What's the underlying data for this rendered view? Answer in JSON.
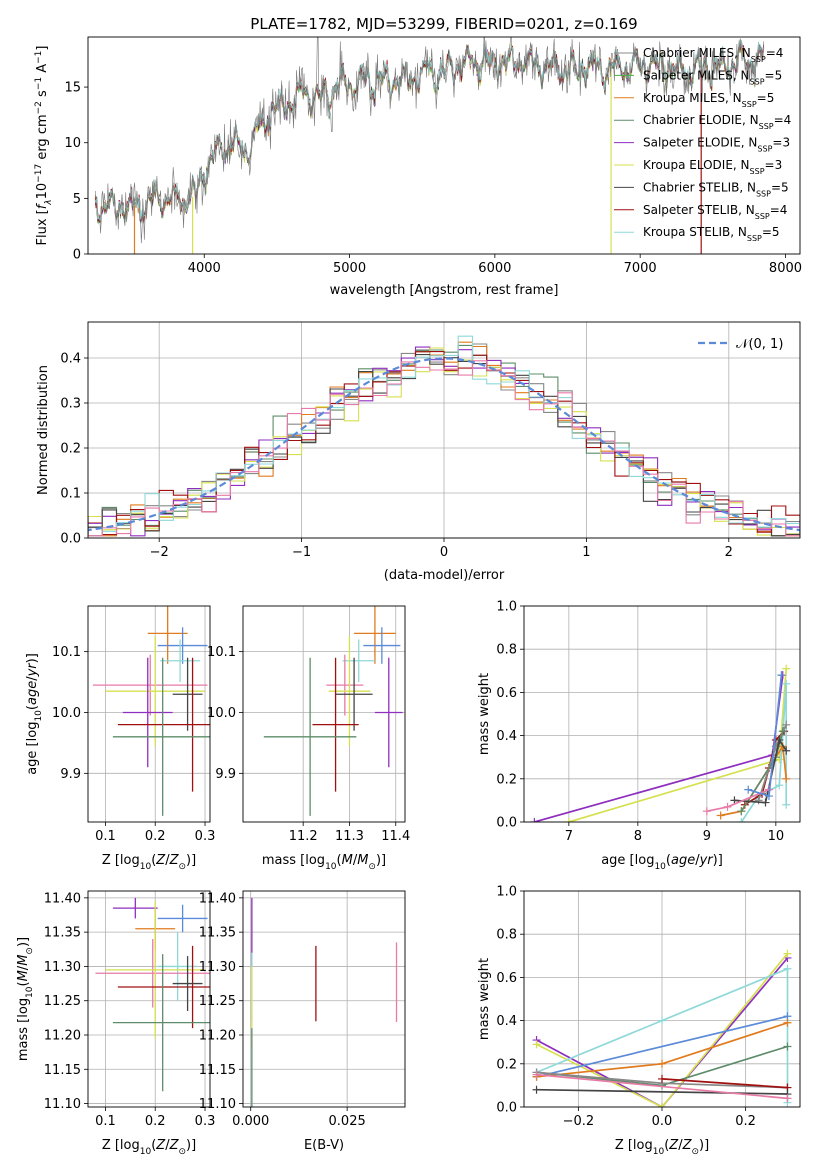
{
  "figure_title": "PLATE=1782, MJD=53299, FIBERID=0201, z=0.169",
  "colors": {
    "Chabrier MILES": "#888888",
    "Salpeter MILES": "#4daf4a",
    "Kroupa MILES": "#e07b1f",
    "Chabrier ELODIE": "#5e8c6a",
    "Salpeter ELODIE": "#8e2fbf",
    "Kroupa ELODIE": "#d6e04f",
    "Chabrier STELIB": "#444444",
    "Salpeter STELIB": "#a01010",
    "Kroupa STELIB": "#8fd8d8",
    "pink": "#e87aa7",
    "blue": "#5b8ad8"
  },
  "chart_data": [
    {
      "id": "spectrum",
      "type": "line",
      "xlabel": "wavelength [Angstrom, rest frame]",
      "ylabel": "Flux [f_λ 10^-17 erg cm^-2 s^-1 A^-1]",
      "xlim": [
        3200,
        8100
      ],
      "ylim": [
        0,
        19.5
      ],
      "xticks": [
        4000,
        5000,
        6000,
        7000,
        8000
      ],
      "yticks": [
        0,
        5,
        10,
        15
      ],
      "legend_position": "right",
      "legend": [
        {
          "name": "Chabrier MILES",
          "label": "Chabrier MILES, N",
          "sub": "SSP",
          "suffix": "=4"
        },
        {
          "name": "Salpeter MILES",
          "label": "Salpeter MILES, N",
          "sub": "SSP",
          "suffix": "=5"
        },
        {
          "name": "Kroupa MILES",
          "label": "Kroupa MILES, N",
          "sub": "SSP",
          "suffix": "=5"
        },
        {
          "name": "Chabrier ELODIE",
          "label": "Chabrier ELODIE, N",
          "sub": "SSP",
          "suffix": "=4"
        },
        {
          "name": "Salpeter ELODIE",
          "label": "Salpeter ELODIE, N",
          "sub": "SSP",
          "suffix": "=3"
        },
        {
          "name": "Kroupa ELODIE",
          "label": "Kroupa ELODIE, N",
          "sub": "SSP",
          "suffix": "=3"
        },
        {
          "name": "Chabrier STELIB",
          "label": "Chabrier STELIB, N",
          "sub": "SSP",
          "suffix": "=5"
        },
        {
          "name": "Salpeter STELIB",
          "label": "Salpeter STELIB, N",
          "sub": "SSP",
          "suffix": "=4"
        },
        {
          "name": "Kroupa STELIB",
          "label": "Kroupa STELIB, N",
          "sub": "SSP",
          "suffix": "=5"
        }
      ],
      "continuum": {
        "x": [
          3250,
          3400,
          3550,
          3700,
          3850,
          3950,
          4000,
          4100,
          4200,
          4300,
          4400,
          4500,
          4600,
          4700,
          4800,
          4900,
          5000,
          5200,
          5400,
          5600,
          5800,
          6000,
          6200,
          6400,
          6600,
          6800,
          7000,
          7200,
          7400,
          7600,
          7800
        ],
        "y": [
          4.0,
          4.5,
          4.3,
          5.0,
          4.8,
          5.3,
          7.5,
          9.5,
          10.0,
          9.5,
          12.0,
          13.0,
          13.8,
          14.5,
          14.0,
          15.0,
          15.3,
          15.5,
          15.8,
          16.3,
          17.2,
          17.0,
          17.3,
          16.5,
          16.8,
          16.6,
          16.9,
          16.7,
          16.5,
          17.0,
          17.6
        ]
      },
      "data_trace": {
        "xmin": 3250,
        "xmax": 7850,
        "noise": 0.9
      },
      "model_dropouts": [
        {
          "series": "Kroupa MILES",
          "x": 3520
        },
        {
          "series": "Kroupa ELODIE",
          "x": 3920
        },
        {
          "series": "Kroupa ELODIE",
          "x": 6800
        },
        {
          "series": "Salpeter STELIB",
          "x": 7420
        }
      ]
    },
    {
      "id": "residuals",
      "type": "step",
      "xlabel": "(data-model)/error",
      "ylabel": "Normed distribution",
      "xlim": [
        -2.5,
        2.5
      ],
      "ylim": [
        0,
        0.48
      ],
      "xticks": [
        -2,
        -1,
        0,
        1,
        2
      ],
      "yticks": [
        0.0,
        0.1,
        0.2,
        0.3,
        0.4
      ],
      "legend": "𝒩(0, 1)",
      "reference_curve": "N(0,1)",
      "bin_width": 0.1,
      "series_colors": [
        "Chabrier MILES",
        "Kroupa MILES",
        "Chabrier ELODIE",
        "Salpeter ELODIE",
        "Kroupa ELODIE",
        "Chabrier STELIB",
        "Salpeter STELIB",
        "Kroupa STELIB",
        "pink"
      ]
    },
    {
      "id": "age_vs_Z",
      "type": "errorbar",
      "xlabel": "Z [log10(Z/Z⊙)]",
      "ylabel": "age [log10(age/yr)]",
      "xlim": [
        0.065,
        0.31
      ],
      "ylim": [
        9.82,
        10.175
      ],
      "xticks": [
        0.1,
        0.2,
        0.3
      ],
      "yticks": [
        9.9,
        10.0,
        10.1
      ],
      "points": [
        {
          "color": "Kroupa MILES",
          "x": 0.225,
          "xerr": 0.04,
          "y": 10.13,
          "yerr": 0.05
        },
        {
          "color": "blue",
          "x": 0.255,
          "xerr": 0.05,
          "y": 10.11,
          "yerr": 0.03
        },
        {
          "color": "Kroupa STELIB",
          "x": 0.25,
          "xerr": 0.04,
          "y": 10.085,
          "yerr": 0.035
        },
        {
          "color": "pink",
          "x": 0.19,
          "xerr": 0.115,
          "y": 10.045,
          "yerr": 0.05
        },
        {
          "color": "Kroupa ELODIE",
          "x": 0.2,
          "xerr": 0.1,
          "y": 10.035,
          "yerr": 0.09
        },
        {
          "color": "Chabrier STELIB",
          "x": 0.265,
          "xerr": 0.03,
          "y": 10.03,
          "yerr": 0.06
        },
        {
          "color": "Salpeter ELODIE",
          "x": 0.185,
          "xerr": 0.05,
          "y": 10.0,
          "yerr": 0.09
        },
        {
          "color": "Salpeter STELIB",
          "x": 0.275,
          "xerr": 0.15,
          "y": 9.98,
          "yerr": 0.11
        },
        {
          "color": "Chabrier ELODIE",
          "x": 0.215,
          "xerr": 0.1,
          "y": 9.96,
          "yerr": 0.13
        }
      ]
    },
    {
      "id": "age_vs_mass",
      "type": "errorbar",
      "xlabel": "mass [log10(M/M⊙)]",
      "ylabel": "",
      "xlim": [
        11.07,
        11.42
      ],
      "ylim": [
        9.82,
        10.175
      ],
      "xticks": [
        11.2,
        11.3,
        11.4
      ],
      "yticks": [
        9.9,
        10.0,
        10.1
      ],
      "points": [
        {
          "color": "Kroupa MILES",
          "x": 11.355,
          "xerr": 0.045,
          "y": 10.13,
          "yerr": 0.05
        },
        {
          "color": "blue",
          "x": 11.37,
          "xerr": 0.04,
          "y": 10.11,
          "yerr": 0.03
        },
        {
          "color": "Kroupa STELIB",
          "x": 11.32,
          "xerr": 0.035,
          "y": 10.085,
          "yerr": 0.035
        },
        {
          "color": "pink",
          "x": 11.29,
          "xerr": 0.04,
          "y": 10.045,
          "yerr": 0.05
        },
        {
          "color": "Kroupa ELODIE",
          "x": 11.3,
          "xerr": 0.045,
          "y": 10.035,
          "yerr": 0.09
        },
        {
          "color": "Chabrier STELIB",
          "x": 11.31,
          "xerr": 0.04,
          "y": 10.03,
          "yerr": 0.06
        },
        {
          "color": "Salpeter ELODIE",
          "x": 11.385,
          "xerr": 0.03,
          "y": 10.0,
          "yerr": 0.09
        },
        {
          "color": "Salpeter STELIB",
          "x": 11.27,
          "xerr": 0.05,
          "y": 9.98,
          "yerr": 0.11
        },
        {
          "color": "Chabrier ELODIE",
          "x": 11.215,
          "xerr": 0.1,
          "y": 9.96,
          "yerr": 0.13
        }
      ]
    },
    {
      "id": "weight_vs_age",
      "type": "line",
      "xlabel": "age [log10(age/yr)]",
      "ylabel": "mass weight",
      "xlim": [
        6.35,
        10.35
      ],
      "ylim": [
        0,
        1.0
      ],
      "xticks": [
        7,
        8,
        9,
        10
      ],
      "yticks": [
        0.0,
        0.2,
        0.4,
        0.6,
        0.8,
        1.0
      ],
      "series": [
        {
          "color": "Salpeter ELODIE",
          "x": [
            6.5,
            9.95,
            10.1
          ],
          "y": [
            0.0,
            0.31,
            0.68
          ]
        },
        {
          "color": "Kroupa ELODIE",
          "x": [
            7.0,
            10.05,
            10.15
          ],
          "y": [
            0.0,
            0.29,
            0.71
          ]
        },
        {
          "color": "Kroupa STELIB",
          "x": [
            9.5,
            9.75,
            10.05,
            10.15,
            10.15
          ],
          "y": [
            0.0,
            0.12,
            0.17,
            0.64,
            0.08
          ]
        },
        {
          "color": "Salpeter STELIB",
          "x": [
            9.55,
            9.8,
            9.9,
            10.0,
            10.12
          ],
          "y": [
            0.08,
            0.13,
            0.25,
            0.38,
            0.42
          ]
        },
        {
          "color": "Chabrier MILES",
          "x": [
            9.75,
            10.0,
            10.15
          ],
          "y": [
            0.1,
            0.35,
            0.45
          ]
        },
        {
          "color": "Kroupa MILES",
          "x": [
            9.2,
            9.5,
            10.1,
            10.15
          ],
          "y": [
            0.03,
            0.05,
            0.35,
            0.2
          ]
        },
        {
          "color": "Chabrier ELODIE",
          "x": [
            9.5,
            10.0,
            10.1
          ],
          "y": [
            0.05,
            0.3,
            0.42
          ]
        },
        {
          "color": "Chabrier STELIB",
          "x": [
            9.4,
            9.85,
            10.05,
            10.15
          ],
          "y": [
            0.1,
            0.09,
            0.38,
            0.33
          ]
        },
        {
          "color": "pink",
          "x": [
            9.0,
            9.3,
            9.9
          ],
          "y": [
            0.05,
            0.07,
            0.15
          ]
        },
        {
          "color": "blue",
          "x": [
            9.6,
            9.9,
            10.08
          ],
          "y": [
            0.15,
            0.12,
            0.68
          ]
        }
      ]
    },
    {
      "id": "mass_vs_Z",
      "type": "errorbar",
      "xlabel": "Z [log10(Z/Z⊙)]",
      "ylabel": "mass [log10(M/M⊙)]",
      "xlim": [
        0.065,
        0.31
      ],
      "ylim": [
        11.095,
        11.41
      ],
      "xticks": [
        0.1,
        0.2,
        0.3
      ],
      "yticks": [
        11.1,
        11.15,
        11.2,
        11.25,
        11.3,
        11.35,
        11.4
      ],
      "points": [
        {
          "color": "Salpeter ELODIE",
          "x": 0.16,
          "xerr": 0.045,
          "y": 11.385,
          "yerr": 0.015
        },
        {
          "color": "blue",
          "x": 0.255,
          "xerr": 0.05,
          "y": 11.37,
          "yerr": 0.02
        },
        {
          "color": "Kroupa MILES",
          "x": 0.2,
          "xerr": 0.04,
          "y": 11.355,
          "yerr": 0.03
        },
        {
          "color": "Kroupa STELIB",
          "x": 0.245,
          "xerr": 0.04,
          "y": 11.3,
          "yerr": 0.05
        },
        {
          "color": "pink",
          "x": 0.195,
          "xerr": 0.115,
          "y": 11.29,
          "yerr": 0.05
        },
        {
          "color": "Kroupa ELODIE",
          "x": 0.2,
          "xerr": 0.1,
          "y": 11.295,
          "yerr": 0.1
        },
        {
          "color": "Salpeter STELIB",
          "x": 0.275,
          "xerr": 0.15,
          "y": 11.27,
          "yerr": 0.06
        },
        {
          "color": "Chabrier STELIB",
          "x": 0.265,
          "xerr": 0.03,
          "y": 11.275,
          "yerr": 0.04
        },
        {
          "color": "Chabrier ELODIE",
          "x": 0.215,
          "xerr": 0.1,
          "y": 11.218,
          "yerr": 0.1
        }
      ]
    },
    {
      "id": "mass_vs_ebv",
      "type": "errorbar",
      "xlabel": "E(B-V)",
      "ylabel": "",
      "xlim": [
        -0.002,
        0.04
      ],
      "ylim": [
        11.095,
        11.41
      ],
      "xticks": [
        0.0,
        0.025
      ],
      "xtick_labels": [
        "0.000",
        "0.025"
      ],
      "yticks": [
        11.1,
        11.15,
        11.2,
        11.25,
        11.3,
        11.35,
        11.4
      ],
      "points": [
        {
          "color": "Salpeter ELODIE",
          "x": 0.0003,
          "xerr": 0,
          "y": 11.35,
          "yerr": 0.05
        },
        {
          "color": "Kroupa STELIB",
          "x": 0.0003,
          "xerr": 0,
          "y": 11.27,
          "yerr": 0.05
        },
        {
          "color": "Kroupa ELODIE",
          "x": 0.0003,
          "xerr": 0,
          "y": 11.24,
          "yerr": 0.06
        },
        {
          "color": "Chabrier ELODIE",
          "x": 0.0003,
          "xerr": 0,
          "y": 11.15,
          "yerr": 0.06
        },
        {
          "color": "Salpeter STELIB",
          "x": 0.0169,
          "xerr": 0,
          "y": 11.275,
          "yerr": 0.055
        },
        {
          "color": "pink",
          "x": 0.0378,
          "xerr": 0,
          "y": 11.277,
          "yerr": 0.058
        }
      ]
    },
    {
      "id": "weight_vs_Z",
      "type": "line",
      "xlabel": "Z [log10(Z/Z⊙)]",
      "ylabel": "mass weight",
      "xlim": [
        -0.33,
        0.33
      ],
      "ylim": [
        0,
        1.0
      ],
      "xticks": [
        -0.2,
        0.0,
        0.2
      ],
      "yticks": [
        0.0,
        0.2,
        0.4,
        0.6,
        0.8,
        1.0
      ],
      "series": [
        {
          "color": "Salpeter ELODIE",
          "x": [
            -0.3,
            0.0,
            0.3
          ],
          "y": [
            0.31,
            0.0,
            0.69
          ]
        },
        {
          "color": "Kroupa ELODIE",
          "x": [
            -0.3,
            0.0,
            0.3
          ],
          "y": [
            0.29,
            0.0,
            0.71
          ]
        },
        {
          "color": "Kroupa STELIB",
          "x": [
            -0.3,
            0.0,
            0.3,
            0.3
          ],
          "y": [
            0.16,
            0.4,
            0.64,
            0.02
          ]
        },
        {
          "color": "blue",
          "x": [
            -0.3,
            0.3
          ],
          "y": [
            0.14,
            0.42
          ]
        },
        {
          "color": "Kroupa MILES",
          "x": [
            -0.3,
            0.0,
            0.3
          ],
          "y": [
            0.14,
            0.2,
            0.39
          ]
        },
        {
          "color": "Chabrier ELODIE",
          "x": [
            -0.3,
            0.0,
            0.3
          ],
          "y": [
            0.16,
            0.1,
            0.28
          ]
        },
        {
          "color": "Chabrier MILES",
          "x": [
            -0.3,
            0.0,
            0.3
          ],
          "y": [
            0.16,
            0.11,
            0.09
          ]
        },
        {
          "color": "Salpeter STELIB",
          "x": [
            0.0,
            0.3
          ],
          "y": [
            0.13,
            0.09
          ]
        },
        {
          "color": "Chabrier STELIB",
          "x": [
            -0.3,
            0.3
          ],
          "y": [
            0.08,
            0.06
          ]
        },
        {
          "color": "pink",
          "x": [
            -0.3,
            0.3
          ],
          "y": [
            0.15,
            0.04
          ]
        }
      ]
    }
  ]
}
